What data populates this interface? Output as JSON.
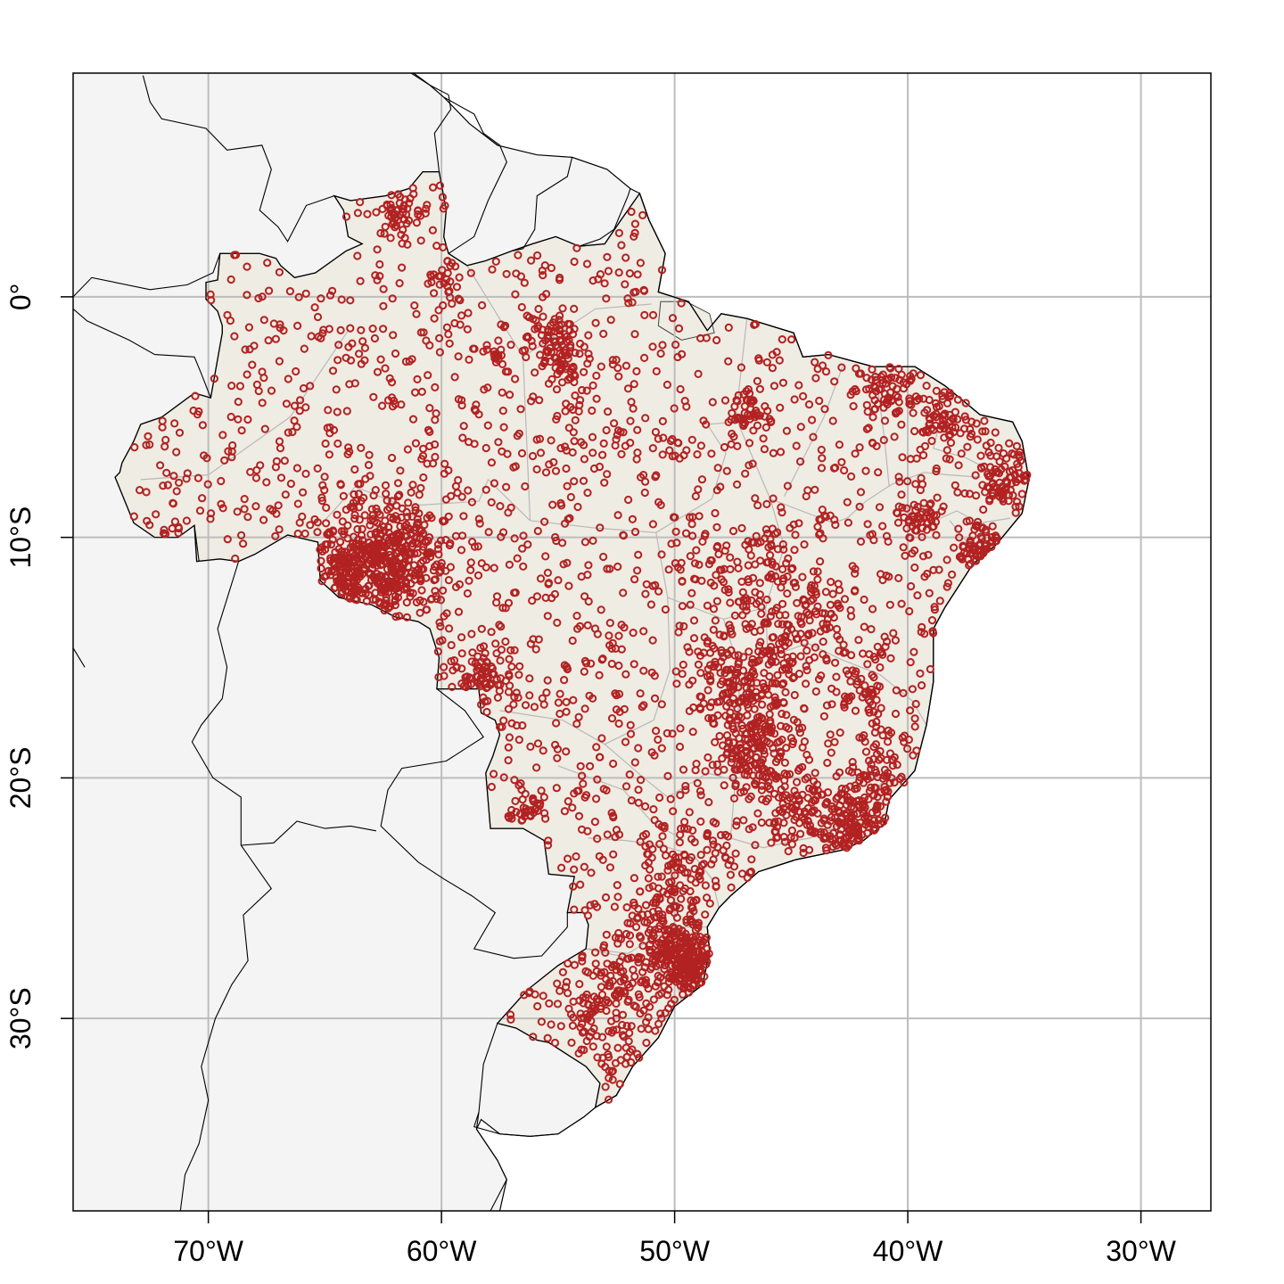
{
  "map": {
    "projection": "longitude-latitude",
    "lon_range": [
      -75.8,
      -27.0
    ],
    "lat_range": [
      9.3,
      -38.0
    ],
    "grid": true,
    "x_ticks": [
      {
        "lon": -70,
        "label": "70°W"
      },
      {
        "lon": -60,
        "label": "60°W"
      },
      {
        "lon": -50,
        "label": "50°W"
      },
      {
        "lon": -40,
        "label": "40°W"
      },
      {
        "lon": -30,
        "label": "30°W"
      }
    ],
    "y_ticks": [
      {
        "lat": 0,
        "label": "0°"
      },
      {
        "lat": -10,
        "label": "10°S"
      },
      {
        "lat": -20,
        "label": "20°S"
      },
      {
        "lat": -30,
        "label": "30°S"
      }
    ],
    "colors": {
      "ocean": "#ffffff",
      "land": "#f4f4f4",
      "brazil": "#efece3",
      "border": "#000000",
      "state_border": "#b8b8b8",
      "grid": "#bdbdbd",
      "points": "#b22222"
    },
    "point_style": "open-circle",
    "point_clusters": [
      {
        "lon": -61.8,
        "lat": 3.6,
        "sd": 0.5,
        "n": 40
      },
      {
        "lon": -60.0,
        "lat": 0.8,
        "sd": 0.4,
        "n": 20
      },
      {
        "lon": -62.5,
        "lat": -11.0,
        "sd": 1.4,
        "n": 420
      },
      {
        "lon": -64.0,
        "lat": -11.7,
        "sd": 0.7,
        "n": 80
      },
      {
        "lon": -58.5,
        "lat": -15.7,
        "sd": 0.7,
        "n": 70
      },
      {
        "lon": -55.3,
        "lat": -1.7,
        "sd": 0.5,
        "n": 60
      },
      {
        "lon": -54.6,
        "lat": -2.8,
        "sd": 0.4,
        "n": 40
      },
      {
        "lon": -57.7,
        "lat": -2.5,
        "sd": 0.2,
        "n": 12
      },
      {
        "lon": -46.7,
        "lat": -4.8,
        "sd": 0.5,
        "n": 40
      },
      {
        "lon": -40.8,
        "lat": -3.8,
        "sd": 0.7,
        "n": 60
      },
      {
        "lon": -38.5,
        "lat": -5.2,
        "sd": 0.7,
        "n": 60
      },
      {
        "lon": -35.8,
        "lat": -7.5,
        "sd": 0.6,
        "n": 70
      },
      {
        "lon": -36.8,
        "lat": -10.5,
        "sd": 0.5,
        "n": 60
      },
      {
        "lon": -39.5,
        "lat": -9.2,
        "sd": 0.5,
        "n": 40
      },
      {
        "lon": -47.3,
        "lat": -15.8,
        "sd": 1.0,
        "n": 140
      },
      {
        "lon": -46.5,
        "lat": -18.8,
        "sd": 1.0,
        "n": 180
      },
      {
        "lon": -44.5,
        "lat": -21.2,
        "sd": 0.8,
        "n": 90
      },
      {
        "lon": -42.0,
        "lat": -22.0,
        "sd": 0.8,
        "n": 130
      },
      {
        "lon": -41.0,
        "lat": -20.0,
        "sd": 0.7,
        "n": 60
      },
      {
        "lon": -49.5,
        "lat": -23.5,
        "sd": 1.2,
        "n": 90
      },
      {
        "lon": -50.5,
        "lat": -26.6,
        "sd": 1.0,
        "n": 160
      },
      {
        "lon": -49.3,
        "lat": -27.8,
        "sd": 0.7,
        "n": 180
      },
      {
        "lon": -52.8,
        "lat": -29.6,
        "sd": 1.3,
        "n": 130
      },
      {
        "lon": -56.3,
        "lat": -21.2,
        "sd": 0.4,
        "n": 30
      },
      {
        "lon": -47.0,
        "lat": -11.5,
        "sd": 1.2,
        "n": 80
      },
      {
        "lon": -44.5,
        "lat": -14.0,
        "sd": 1.1,
        "n": 90
      },
      {
        "lon": -42.0,
        "lat": -16.5,
        "sd": 0.6,
        "n": 40
      }
    ],
    "scatter_points": 1700,
    "random_seed": 7
  }
}
